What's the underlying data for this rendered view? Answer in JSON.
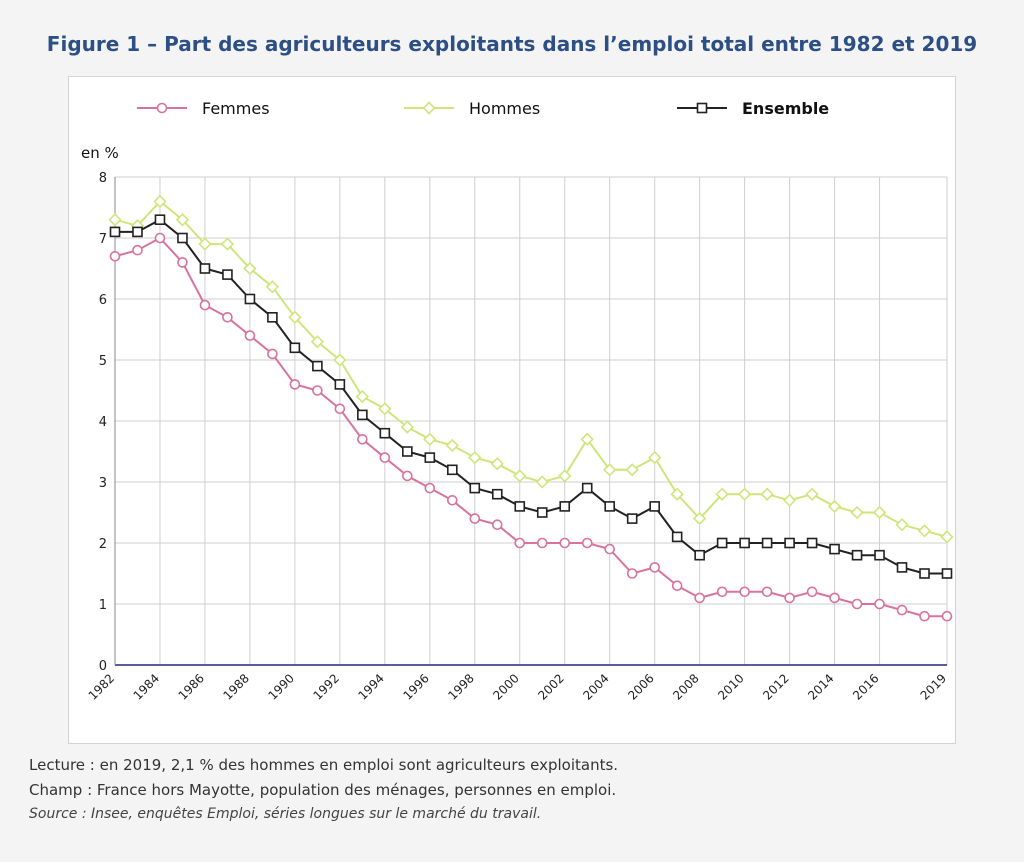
{
  "figure": {
    "title": "Figure 1 – Part des agriculteurs exploitants dans l’emploi total entre 1982 et 2019",
    "reading_note": "Lecture : en 2019, 2,1 % des hommes en emploi sont agriculteurs exploitants.",
    "scope_note": "Champ : France hors Mayotte, population des ménages, personnes en emploi.",
    "source_note": "Source : Insee, enquêtes Emploi, séries longues sur le marché du travail."
  },
  "chart_data": {
    "type": "line",
    "title": "Figure 1 – Part des agriculteurs exploitants dans l’emploi total entre 1982 et 2019",
    "xlabel": "",
    "ylabel": "en %",
    "ylim": [
      0,
      8
    ],
    "yticks": [
      "0",
      "1",
      "2",
      "3",
      "4",
      "5",
      "6",
      "7",
      "8"
    ],
    "xticks": [
      "1982",
      "1984",
      "1986",
      "1988",
      "1990",
      "1992",
      "1994",
      "1996",
      "1998",
      "2000",
      "2002",
      "2004",
      "2006",
      "2008",
      "2010",
      "2012",
      "2014",
      "2016",
      "2019"
    ],
    "grid": true,
    "legend_position": "top",
    "x": [
      1982,
      1983,
      1984,
      1985,
      1986,
      1987,
      1988,
      1989,
      1990,
      1991,
      1992,
      1993,
      1994,
      1995,
      1996,
      1997,
      1998,
      1999,
      2000,
      2001,
      2002,
      2003,
      2004,
      2005,
      2006,
      2007,
      2008,
      2009,
      2010,
      2011,
      2012,
      2013,
      2014,
      2015,
      2016,
      2017,
      2018,
      2019
    ],
    "series": [
      {
        "name": "Femmes",
        "color": "#d9729c",
        "marker": "circle",
        "values": [
          6.7,
          6.8,
          7.0,
          6.6,
          5.9,
          5.7,
          5.4,
          5.1,
          4.6,
          4.5,
          4.2,
          3.7,
          3.4,
          3.1,
          2.9,
          2.7,
          2.4,
          2.3,
          2.0,
          2.0,
          2.0,
          2.0,
          1.9,
          1.5,
          1.6,
          1.3,
          1.1,
          1.2,
          1.2,
          1.2,
          1.1,
          1.2,
          1.1,
          1.0,
          1.0,
          0.9,
          0.8,
          0.8
        ]
      },
      {
        "name": "Hommes",
        "color": "#cde67a",
        "marker": "diamond",
        "values": [
          7.3,
          7.2,
          7.6,
          7.3,
          6.9,
          6.9,
          6.5,
          6.2,
          5.7,
          5.3,
          5.0,
          4.4,
          4.2,
          3.9,
          3.7,
          3.6,
          3.4,
          3.3,
          3.1,
          3.0,
          3.1,
          3.7,
          3.2,
          3.2,
          3.4,
          2.8,
          2.4,
          2.8,
          2.8,
          2.8,
          2.7,
          2.8,
          2.6,
          2.5,
          2.5,
          2.3,
          2.2,
          2.1
        ]
      },
      {
        "name": "Ensemble",
        "color": "#222222",
        "marker": "square",
        "values": [
          7.1,
          7.1,
          7.3,
          7.0,
          6.5,
          6.4,
          6.0,
          5.7,
          5.2,
          4.9,
          4.6,
          4.1,
          3.8,
          3.5,
          3.4,
          3.2,
          2.9,
          2.8,
          2.6,
          2.5,
          2.6,
          2.9,
          2.6,
          2.4,
          2.6,
          2.1,
          1.8,
          2.0,
          2.0,
          2.0,
          2.0,
          2.0,
          1.9,
          1.8,
          1.8,
          1.6,
          1.5,
          1.5
        ]
      }
    ]
  }
}
